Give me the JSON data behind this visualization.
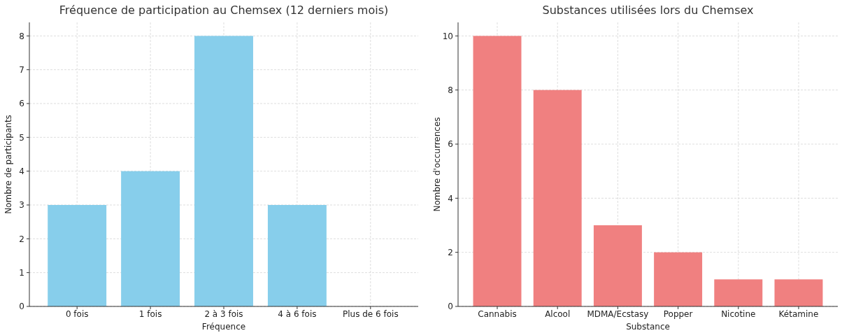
{
  "chart_data": [
    {
      "type": "bar",
      "title": "Fréquence de participation au Chemsex (12 derniers mois)",
      "xlabel": "Fréquence",
      "ylabel": "Nombre de participants",
      "categories": [
        "0 fois",
        "1 fois",
        "2 à 3 fois",
        "4 à 6 fois",
        "Plus de 6 fois"
      ],
      "values": [
        3,
        4,
        8,
        3,
        0
      ],
      "color": "#87ceeb",
      "ylim": [
        0,
        8.4
      ],
      "yticks": [
        0,
        1,
        2,
        3,
        4,
        5,
        6,
        7,
        8
      ],
      "grid": true
    },
    {
      "type": "bar",
      "title": "Substances utilisées lors du Chemsex",
      "xlabel": "Substance",
      "ylabel": "Nombre d'occurrences",
      "categories": [
        "Cannabis",
        "Alcool",
        "MDMA/Ecstasy",
        "Popper",
        "Nicotine",
        "Kétamine"
      ],
      "values": [
        10,
        8,
        3,
        2,
        1,
        1
      ],
      "color": "#f08080",
      "ylim": [
        0,
        10.5
      ],
      "yticks": [
        0,
        2,
        4,
        6,
        8,
        10
      ],
      "grid": true
    }
  ]
}
